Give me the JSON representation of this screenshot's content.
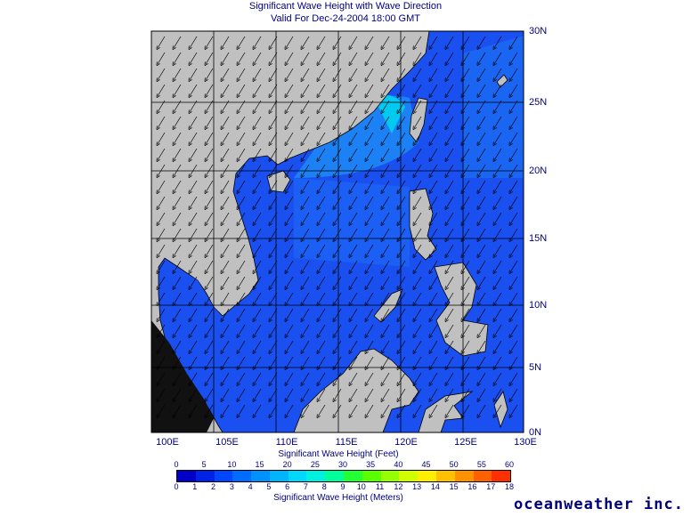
{
  "title_line1": "Significant Wave Height with Wave Direction",
  "title_line2": "Valid For Dec-24-2004 18:00 GMT",
  "lat_labels": [
    "30N",
    "25N",
    "20N",
    "15N",
    "10N",
    "5N",
    "0N"
  ],
  "lon_labels": [
    "100E",
    "105E",
    "110E",
    "115E",
    "120E",
    "125E",
    "130E"
  ],
  "feet_title": "Significant Wave Height (Feet)",
  "feet_ticks": [
    "0",
    "5",
    "10",
    "15",
    "20",
    "25",
    "30",
    "35",
    "40",
    "45",
    "50",
    "55",
    "60"
  ],
  "meters_title": "Significant Wave Height (Meters)",
  "meter_ticks": [
    "0",
    "1",
    "2",
    "3",
    "4",
    "5",
    "6",
    "7",
    "8",
    "9",
    "10",
    "11",
    "12",
    "13",
    "14",
    "15",
    "16",
    "17",
    "18"
  ],
  "colors": {
    "land": "#c0c0c0",
    "sea": "#1a4ff0",
    "label": "#000080",
    "scale": [
      "#0000c8",
      "#0022e6",
      "#0046ff",
      "#006cff",
      "#0090ff",
      "#00b4ff",
      "#00d8ff",
      "#00f0e0",
      "#00ff9a",
      "#22ff33",
      "#5aff00",
      "#96ff00",
      "#d2ff00",
      "#ffee00",
      "#ffc000",
      "#ff9000",
      "#ff6000",
      "#ff3000"
    ]
  },
  "brand": "oceanweather inc."
}
